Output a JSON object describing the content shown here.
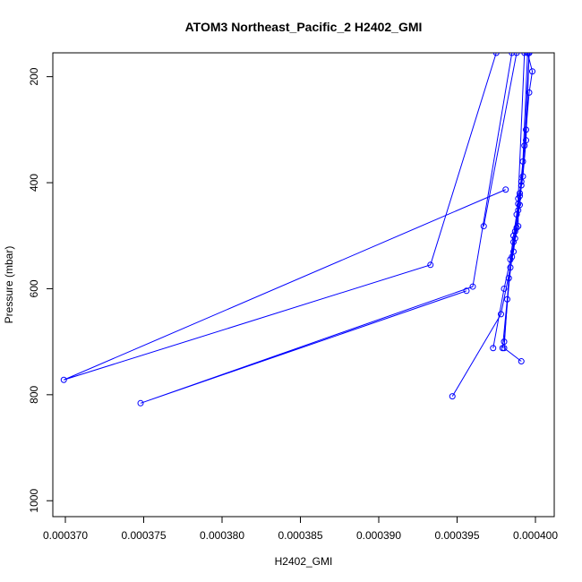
{
  "chart_data": {
    "type": "scatter",
    "title": "ATOM3 Northeast_Pacific_2 H2402_GMI",
    "xlabel": "H2402_GMI",
    "ylabel": "Pressure (mbar)",
    "xlim": [
      0.0003692,
      0.0004012
    ],
    "ylim": [
      1030,
      155
    ],
    "y_reversed": true,
    "grid": false,
    "legend": "none",
    "x_ticks": [
      0.00037,
      0.000375,
      0.00038,
      0.000385,
      0.00039,
      0.000395,
      0.0004
    ],
    "x_tick_labels": [
      "0.000370",
      "0.000375",
      "0.000380",
      "0.000385",
      "0.000390",
      "0.000395",
      "0.000400"
    ],
    "y_ticks": [
      200,
      400,
      600,
      800,
      1000
    ],
    "y_tick_labels": [
      "200",
      "400",
      "600",
      "800",
      "1000"
    ],
    "color": "#0000ff",
    "series": [
      {
        "values": [
          [
            0.0003981,
            413
          ],
          [
            0.0003699,
            772
          ],
          [
            0.0003933,
            555
          ],
          [
            0.0003975,
            155
          ]
        ]
      },
      {
        "values": [
          [
            0.0003956,
            604
          ],
          [
            0.0003748,
            816
          ],
          [
            0.000396,
            596
          ],
          [
            0.0003985,
            155
          ]
        ]
      },
      {
        "values": [
          [
            0.0003967,
            482
          ],
          [
            0.0003988,
            155
          ]
        ]
      },
      {
        "values": [
          [
            0.0003947,
            803
          ],
          [
            0.0003978,
            648
          ],
          [
            0.0003986,
            530
          ],
          [
            0.0003988,
            485
          ],
          [
            0.000399,
            442
          ],
          [
            0.0003991,
            405
          ],
          [
            0.0003994,
            300
          ],
          [
            0.0003996,
            230
          ],
          [
            0.0003998,
            190
          ],
          [
            0.0003995,
            155
          ]
        ]
      },
      {
        "values": [
          [
            0.0003973,
            712
          ],
          [
            0.000398,
            600
          ],
          [
            0.0003984,
            545
          ],
          [
            0.0003986,
            500
          ],
          [
            0.0003988,
            460
          ],
          [
            0.000399,
            425
          ],
          [
            0.0003992,
            388
          ],
          [
            0.0003994,
            320
          ],
          [
            0.0003996,
            155
          ]
        ]
      },
      {
        "values": [
          [
            0.0003979,
            712
          ],
          [
            0.0003982,
            620
          ],
          [
            0.0003985,
            540
          ],
          [
            0.0003987,
            492
          ],
          [
            0.0003989,
            452
          ],
          [
            0.000399,
            420
          ],
          [
            0.0003992,
            360
          ],
          [
            0.0003995,
            155
          ]
        ]
      },
      {
        "values": [
          [
            0.0003991,
            737
          ],
          [
            0.000398,
            712
          ],
          [
            0.0003983,
            580
          ],
          [
            0.0003986,
            512
          ],
          [
            0.0003989,
            482
          ],
          [
            0.0003989,
            440
          ],
          [
            0.0003991,
            398
          ],
          [
            0.0003993,
            330
          ],
          [
            0.0003996,
            155
          ]
        ]
      },
      {
        "values": [
          [
            0.000398,
            700
          ],
          [
            0.0003984,
            560
          ],
          [
            0.0003987,
            505
          ],
          [
            0.0003989,
            430
          ],
          [
            0.0003993,
            155
          ]
        ]
      }
    ]
  }
}
